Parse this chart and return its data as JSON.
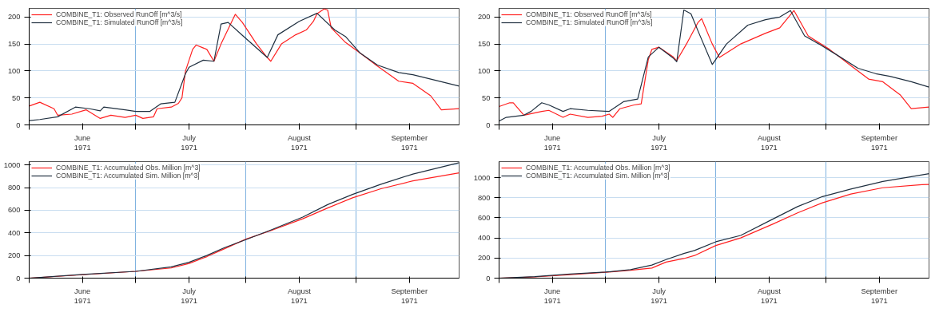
{
  "chart_data": [
    {
      "type": "line",
      "xlim": [
        "1971-06-01",
        "1971-09-30"
      ],
      "ylim": [
        0,
        216
      ],
      "yticks": [
        0,
        50,
        100,
        150,
        200
      ],
      "xticks": [
        {
          "value": "1971-06-01",
          "label": null
        },
        {
          "value": "1971-06-16",
          "label": "June\n1971"
        },
        {
          "value": "1971-07-01",
          "label": null
        },
        {
          "value": "1971-07-16",
          "label": "July\n1971"
        },
        {
          "value": "1971-08-01",
          "label": null
        },
        {
          "value": "1971-08-16",
          "label": "August\n1971"
        },
        {
          "value": "1971-09-01",
          "label": null
        },
        {
          "value": "1971-09-16",
          "label": "September\n1971"
        }
      ],
      "grid": true,
      "legend": "top left",
      "line_style": "solid",
      "marker": "none",
      "series": [
        {
          "name": "COMBINE_T1: Observed RunOff [m^3/s]",
          "color": "#ff2020",
          "x": [
            "1971-06-01",
            "1971-06-04",
            "1971-06-08",
            "1971-06-09",
            "1971-06-13",
            "1971-06-17",
            "1971-06-21",
            "1971-06-24",
            "1971-06-28",
            "1971-07-01",
            "1971-07-03",
            "1971-07-06",
            "1971-07-07",
            "1971-07-11",
            "1971-07-13",
            "1971-07-14",
            "1971-07-15",
            "1971-07-17",
            "1971-07-18",
            "1971-07-21",
            "1971-07-23",
            "1971-07-25",
            "1971-07-29",
            "1971-07-31",
            "1971-08-04",
            "1971-08-07",
            "1971-08-08",
            "1971-08-11",
            "1971-08-15",
            "1971-08-18",
            "1971-08-20",
            "1971-08-21",
            "1971-08-23",
            "1971-08-24",
            "1971-08-25",
            "1971-08-29",
            "1971-09-02",
            "1971-09-07",
            "1971-09-13",
            "1971-09-17",
            "1971-09-22",
            "1971-09-25",
            "1971-09-30"
          ],
          "values": [
            35,
            42,
            30,
            18,
            20,
            28,
            12,
            18,
            14,
            18,
            12,
            15,
            30,
            33,
            40,
            50,
            100,
            140,
            148,
            140,
            118,
            150,
            205,
            190,
            150,
            125,
            118,
            150,
            167,
            176,
            192,
            206,
            215,
            213,
            180,
            153,
            134,
            109,
            81,
            77,
            54,
            28,
            30
          ]
        },
        {
          "name": "COMBINE_T1: Simulated RunOff [m^3/s]",
          "color": "#203040",
          "x": [
            "1971-06-01",
            "1971-06-04",
            "1971-06-09",
            "1971-06-14",
            "1971-06-18",
            "1971-06-21",
            "1971-06-22",
            "1971-06-28",
            "1971-07-01",
            "1971-07-05",
            "1971-07-08",
            "1971-07-12",
            "1971-07-15",
            "1971-07-16",
            "1971-07-20",
            "1971-07-23",
            "1971-07-25",
            "1971-07-27",
            "1971-07-31",
            "1971-08-07",
            "1971-08-10",
            "1971-08-16",
            "1971-08-21",
            "1971-08-26",
            "1971-08-29",
            "1971-09-02",
            "1971-09-07",
            "1971-09-13",
            "1971-09-17",
            "1971-09-30"
          ],
          "values": [
            8,
            10,
            15,
            33,
            30,
            26,
            33,
            28,
            25,
            25,
            39,
            42,
            95,
            107,
            120,
            118,
            187,
            190,
            166,
            125,
            167,
            192,
            207,
            176,
            164,
            134,
            111,
            97,
            93,
            72
          ]
        }
      ]
    },
    {
      "type": "line",
      "xlim": [
        "1971-06-01",
        "1971-09-30"
      ],
      "ylim": [
        0,
        216
      ],
      "yticks": [
        0,
        50,
        100,
        150,
        200
      ],
      "xticks": [
        {
          "value": "1971-06-01",
          "label": null
        },
        {
          "value": "1971-06-16",
          "label": "June\n1971"
        },
        {
          "value": "1971-07-01",
          "label": null
        },
        {
          "value": "1971-07-16",
          "label": "July\n1971"
        },
        {
          "value": "1971-08-01",
          "label": null
        },
        {
          "value": "1971-08-16",
          "label": "August\n1971"
        },
        {
          "value": "1971-09-01",
          "label": null
        },
        {
          "value": "1971-09-16",
          "label": "September\n1971"
        }
      ],
      "grid": true,
      "legend": "top left",
      "line_style": "solid",
      "marker": "none",
      "series": [
        {
          "name": "COMBINE_T1: Observed RunOff [m^3/s]",
          "color": "#ff2020",
          "x": [
            "1971-06-01",
            "1971-06-04",
            "1971-06-05",
            "1971-06-08",
            "1971-06-13",
            "1971-06-15",
            "1971-06-19",
            "1971-06-21",
            "1971-06-26",
            "1971-06-30",
            "1971-07-02",
            "1971-07-03",
            "1971-07-05",
            "1971-07-09",
            "1971-07-11",
            "1971-07-13",
            "1971-07-14",
            "1971-07-16",
            "1971-07-20",
            "1971-07-21",
            "1971-07-24",
            "1971-07-27",
            "1971-07-28",
            "1971-07-31",
            "1971-08-02",
            "1971-08-08",
            "1971-08-15",
            "1971-08-19",
            "1971-08-23",
            "1971-08-27",
            "1971-09-02",
            "1971-09-08",
            "1971-09-13",
            "1971-09-17",
            "1971-09-22",
            "1971-09-25",
            "1971-09-30"
          ],
          "values": [
            34,
            41,
            41,
            18,
            25,
            27,
            14,
            20,
            14,
            16,
            20,
            14,
            30,
            37,
            39,
            121,
            140,
            144,
            126,
            119,
            153,
            190,
            197,
            150,
            125,
            150,
            170,
            180,
            212,
            165,
            140,
            110,
            85,
            80,
            55,
            30,
            33
          ]
        },
        {
          "name": "COMBINE_T1: Simulated RunOff [m^3/s]",
          "color": "#203040",
          "x": [
            "1971-06-01",
            "1971-06-03",
            "1971-06-08",
            "1971-06-10",
            "1971-06-13",
            "1971-06-15",
            "1971-06-19",
            "1971-06-21",
            "1971-06-26",
            "1971-07-02",
            "1971-07-06",
            "1971-07-10",
            "1971-07-13",
            "1971-07-16",
            "1971-07-20",
            "1971-07-21",
            "1971-07-23",
            "1971-07-25",
            "1971-07-27",
            "1971-07-31",
            "1971-08-04",
            "1971-08-10",
            "1971-08-15",
            "1971-08-19",
            "1971-08-22",
            "1971-08-26",
            "1971-08-30",
            "1971-09-04",
            "1971-09-10",
            "1971-09-15",
            "1971-09-19",
            "1971-09-25",
            "1971-09-30"
          ],
          "values": [
            7,
            14,
            18,
            25,
            41,
            37,
            25,
            30,
            27,
            25,
            43,
            48,
            126,
            144,
            124,
            117,
            213,
            206,
            174,
            112,
            150,
            185,
            195,
            200,
            212,
            165,
            150,
            130,
            105,
            95,
            90,
            80,
            70
          ]
        }
      ]
    },
    {
      "type": "line",
      "xlim": [
        "1971-06-01",
        "1971-09-30"
      ],
      "ylim": [
        0,
        1030
      ],
      "yticks": [
        0,
        200,
        400,
        600,
        800,
        1000
      ],
      "xticks": [
        {
          "value": "1971-06-01",
          "label": null
        },
        {
          "value": "1971-06-16",
          "label": "June\n1971"
        },
        {
          "value": "1971-07-01",
          "label": null
        },
        {
          "value": "1971-07-16",
          "label": "July\n1971"
        },
        {
          "value": "1971-08-01",
          "label": null
        },
        {
          "value": "1971-08-16",
          "label": "August\n1971"
        },
        {
          "value": "1971-09-01",
          "label": null
        },
        {
          "value": "1971-09-16",
          "label": "September\n1971"
        }
      ],
      "grid": true,
      "legend": "top left",
      "line_style": "solid",
      "marker": "none",
      "series": [
        {
          "name": "COMBINE_T1: Accumulated Obs. Million [m^3]",
          "color": "#ff2020",
          "x": [
            "1971-06-01",
            "1971-06-16",
            "1971-07-01",
            "1971-07-11",
            "1971-07-16",
            "1971-07-21",
            "1971-07-26",
            "1971-08-01",
            "1971-08-08",
            "1971-08-17",
            "1971-08-24",
            "1971-08-31",
            "1971-09-08",
            "1971-09-17",
            "1971-09-30"
          ],
          "values": [
            0,
            30,
            60,
            90,
            130,
            190,
            260,
            345,
            420,
            525,
            620,
            710,
            790,
            860,
            930
          ]
        },
        {
          "name": "COMBINE_T1: Accumulated Sim. Million [m^3]",
          "color": "#203040",
          "x": [
            "1971-06-01",
            "1971-06-16",
            "1971-07-01",
            "1971-07-11",
            "1971-07-16",
            "1971-07-21",
            "1971-07-26",
            "1971-08-01",
            "1971-08-08",
            "1971-08-17",
            "1971-08-24",
            "1971-08-31",
            "1971-09-08",
            "1971-09-17",
            "1971-09-30"
          ],
          "values": [
            0,
            32,
            60,
            100,
            140,
            200,
            270,
            340,
            425,
            540,
            650,
            740,
            830,
            920,
            1020
          ]
        }
      ]
    },
    {
      "type": "line",
      "xlim": [
        "1971-06-01",
        "1971-09-30"
      ],
      "ylim": [
        0,
        1160
      ],
      "yticks": [
        0,
        200,
        400,
        600,
        800,
        1000
      ],
      "xticks": [
        {
          "value": "1971-06-01",
          "label": null
        },
        {
          "value": "1971-06-16",
          "label": "June\n1971"
        },
        {
          "value": "1971-07-01",
          "label": null
        },
        {
          "value": "1971-07-16",
          "label": "July\n1971"
        },
        {
          "value": "1971-08-01",
          "label": null
        },
        {
          "value": "1971-08-16",
          "label": "August\n1971"
        },
        {
          "value": "1971-09-01",
          "label": null
        },
        {
          "value": "1971-09-16",
          "label": "September\n1971"
        }
      ],
      "grid": true,
      "legend": "top left",
      "line_style": "solid",
      "marker": "none",
      "series": [
        {
          "name": "COMBINE_T1: Accumulated Obs. Million [m^3]",
          "color": "#ff2020",
          "x": [
            "1971-06-01",
            "1971-06-11",
            "1971-06-21",
            "1971-07-01",
            "1971-07-08",
            "1971-07-14",
            "1971-07-18",
            "1971-07-23",
            "1971-07-26",
            "1971-08-01",
            "1971-08-08",
            "1971-08-17",
            "1971-08-24",
            "1971-08-31",
            "1971-09-08",
            "1971-09-17",
            "1971-09-28",
            "1971-09-30"
          ],
          "values": [
            0,
            12,
            35,
            58,
            78,
            100,
            160,
            195,
            225,
            325,
            400,
            537,
            650,
            750,
            837,
            900,
            930,
            932
          ]
        },
        {
          "name": "COMBINE_T1: Accumulated Sim. Million [m^3]",
          "color": "#203040",
          "x": [
            "1971-06-01",
            "1971-06-11",
            "1971-06-21",
            "1971-07-01",
            "1971-07-08",
            "1971-07-14",
            "1971-07-18",
            "1971-07-23",
            "1971-07-26",
            "1971-08-01",
            "1971-08-08",
            "1971-08-17",
            "1971-08-24",
            "1971-08-31",
            "1971-09-08",
            "1971-09-17",
            "1971-09-30"
          ],
          "values": [
            0,
            15,
            40,
            60,
            85,
            130,
            185,
            245,
            275,
            362,
            425,
            587,
            712,
            812,
            887,
            962,
            1040
          ]
        }
      ]
    }
  ]
}
